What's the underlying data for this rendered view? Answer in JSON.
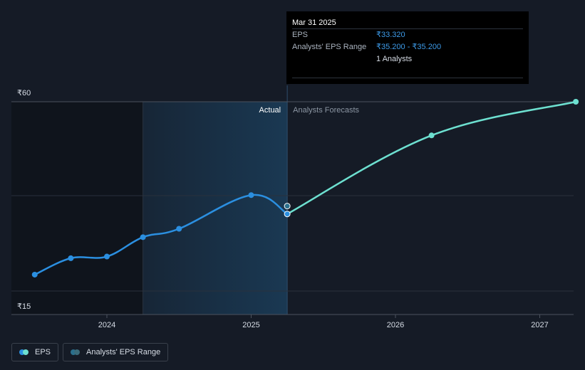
{
  "colors": {
    "eps_actual": "#2b8fe0",
    "eps_forecast": "#6de0d0",
    "range": "#2b6f8c",
    "background": "#151b26",
    "past_shade": "#0f141c",
    "highlight": "#1a3a55"
  },
  "tooltip": {
    "date": "Mar 31 2025",
    "eps_label": "EPS",
    "eps_value": "₹33.320",
    "range_label": "Analysts' EPS Range",
    "range_value": "₹35.200 - ₹35.200",
    "analysts": "1 Analysts"
  },
  "region_labels": {
    "actual": "Actual",
    "forecast": "Analysts Forecasts"
  },
  "legend": {
    "eps": "EPS",
    "range": "Analysts' EPS Range"
  },
  "chart_data": {
    "type": "line",
    "y_axis": {
      "top_label": "₹60",
      "bottom_label": "₹15",
      "ylim": [
        15,
        60
      ]
    },
    "x_ticks": [
      {
        "label": "2024",
        "t": 2024.0
      },
      {
        "label": "2025",
        "t": 2025.0
      },
      {
        "label": "2026",
        "t": 2026.0
      },
      {
        "label": "2027",
        "t": 2027.0
      }
    ],
    "grid": true,
    "highlight_range": [
      2024.25,
      2025.25
    ],
    "series": [
      {
        "name": "EPS",
        "kind": "actual",
        "points": [
          {
            "t": 2023.5,
            "y": 18.9
          },
          {
            "t": 2023.75,
            "y": 22.8
          },
          {
            "t": 2024.0,
            "y": 23.2
          },
          {
            "t": 2024.25,
            "y": 27.8
          },
          {
            "t": 2024.5,
            "y": 29.8
          },
          {
            "t": 2025.0,
            "y": 37.8
          },
          {
            "t": 2025.25,
            "y": 33.32
          }
        ]
      },
      {
        "name": "EPS",
        "kind": "forecast",
        "points": [
          {
            "t": 2025.25,
            "y": 33.32
          },
          {
            "t": 2026.25,
            "y": 52.0
          },
          {
            "t": 2027.25,
            "y": 60.0
          }
        ]
      },
      {
        "name": "Analysts' EPS Range",
        "kind": "range",
        "points": [
          {
            "t": 2025.25,
            "y": 35.2
          }
        ]
      }
    ]
  }
}
